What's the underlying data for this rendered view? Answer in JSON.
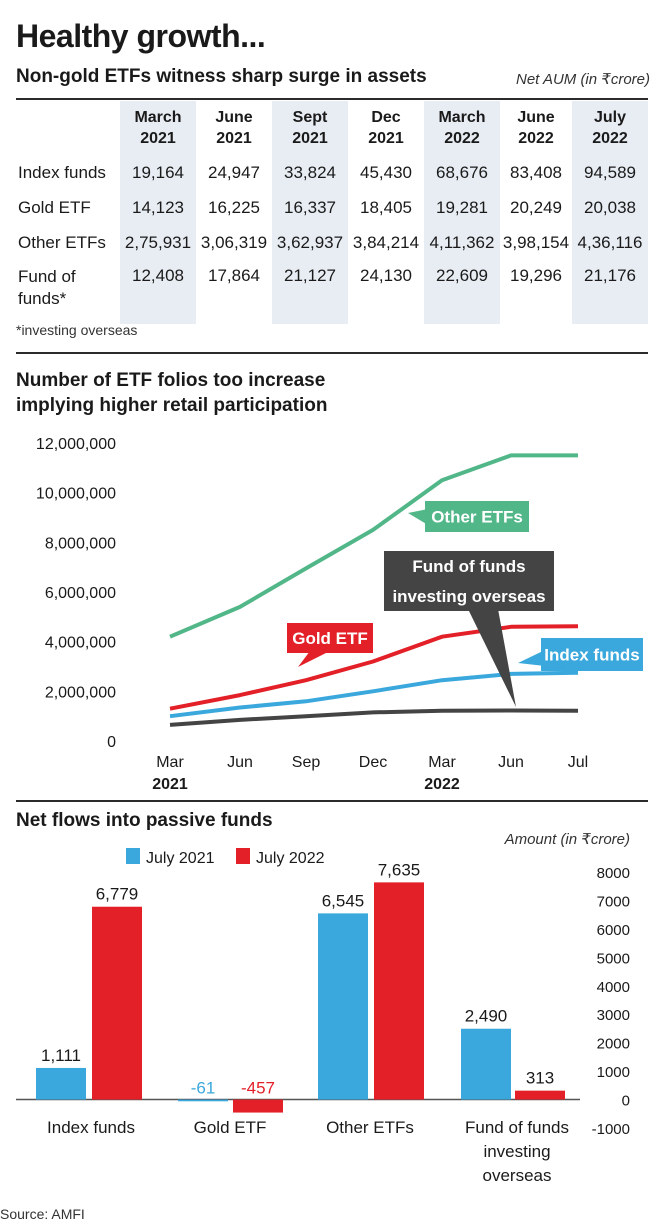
{
  "header": {
    "title": "Healthy growth...",
    "subtitle": "Non-gold ETFs witness sharp surge in assets",
    "unit": "Net AUM (in ₹crore)"
  },
  "aum_table": {
    "columns": [
      {
        "month": "March",
        "year": "2021"
      },
      {
        "month": "June",
        "year": "2021"
      },
      {
        "month": "Sept",
        "year": "2021"
      },
      {
        "month": "Dec",
        "year": "2021"
      },
      {
        "month": "March",
        "year": "2022"
      },
      {
        "month": "June",
        "year": "2022"
      },
      {
        "month": "July",
        "year": "2022"
      }
    ],
    "rows": [
      {
        "label": "Index funds",
        "values": [
          "19,164",
          "24,947",
          "33,824",
          "45,430",
          "68,676",
          "83,408",
          "94,589"
        ]
      },
      {
        "label": "Gold ETF",
        "values": [
          "14,123",
          "16,225",
          "16,337",
          "18,405",
          "19,281",
          "20,249",
          "20,038"
        ]
      },
      {
        "label": "Other ETFs",
        "values": [
          "2,75,931",
          "3,06,319",
          "3,62,937",
          "3,84,214",
          "4,11,362",
          "3,98,154",
          "4,36,116"
        ]
      },
      {
        "label": "Fund of funds*",
        "values": [
          "12,408",
          "17,864",
          "21,127",
          "24,130",
          "22,609",
          "19,296",
          "21,176"
        ]
      }
    ],
    "footnote": "*investing overseas"
  },
  "folios": {
    "title_line1": "Number of ETF folios too increase",
    "title_line2": "implying higher retail participation"
  },
  "flows": {
    "title": "Net flows into passive funds",
    "unit": "Amount (in ₹crore)"
  },
  "source": "Source: AMFI",
  "chart_data": [
    {
      "type": "line",
      "title": "Number of ETF folios too increase implying higher retail participation",
      "x": [
        "Mar",
        "Jun",
        "Sep",
        "Dec",
        "Mar",
        "Jun",
        "Jul"
      ],
      "x_year_labels": [
        "2021",
        "2022"
      ],
      "ylim": [
        0,
        12000000
      ],
      "yticks": [
        0,
        2000000,
        4000000,
        6000000,
        8000000,
        10000000,
        12000000
      ],
      "ytick_labels": [
        "0",
        "2,000,000",
        "4,000,000",
        "6,000,000",
        "8,000,000",
        "10,000,000",
        "12,000,000"
      ],
      "grid": false,
      "series": [
        {
          "name": "Other ETFs",
          "color": "#52b788",
          "values": [
            4200000,
            5400000,
            6950000,
            8500000,
            10500000,
            11500000,
            11500000
          ]
        },
        {
          "name": "Gold ETF",
          "color": "#e32028",
          "values": [
            1300000,
            1850000,
            2450000,
            3200000,
            4200000,
            4600000,
            4620000
          ]
        },
        {
          "name": "Index funds",
          "color": "#3aa8dc",
          "values": [
            1000000,
            1350000,
            1600000,
            2000000,
            2450000,
            2700000,
            2750000
          ]
        },
        {
          "name": "Fund of funds investing overseas",
          "color": "#444444",
          "values": [
            650000,
            850000,
            1000000,
            1150000,
            1220000,
            1230000,
            1220000
          ]
        }
      ]
    },
    {
      "type": "bar",
      "title": "Net flows into passive funds",
      "categories": [
        "Index funds",
        "Gold ETF",
        "Other ETFs",
        "Fund of funds investing overseas"
      ],
      "ylim": [
        -1000,
        8000
      ],
      "yticks": [
        -1000,
        0,
        1000,
        2000,
        3000,
        4000,
        5000,
        6000,
        7000,
        8000
      ],
      "legend_position": "top-left",
      "grid": false,
      "series": [
        {
          "name": "July 2021",
          "color": "#3aa8dc",
          "values": [
            1111,
            -61,
            6545,
            2490
          ],
          "labels": [
            "1,111",
            "-61",
            "6,545",
            "2,490"
          ]
        },
        {
          "name": "July 2022",
          "color": "#e32028",
          "values": [
            6779,
            -457,
            7635,
            313
          ],
          "labels": [
            "6,779",
            "-457",
            "7,635",
            "313"
          ]
        }
      ]
    }
  ]
}
